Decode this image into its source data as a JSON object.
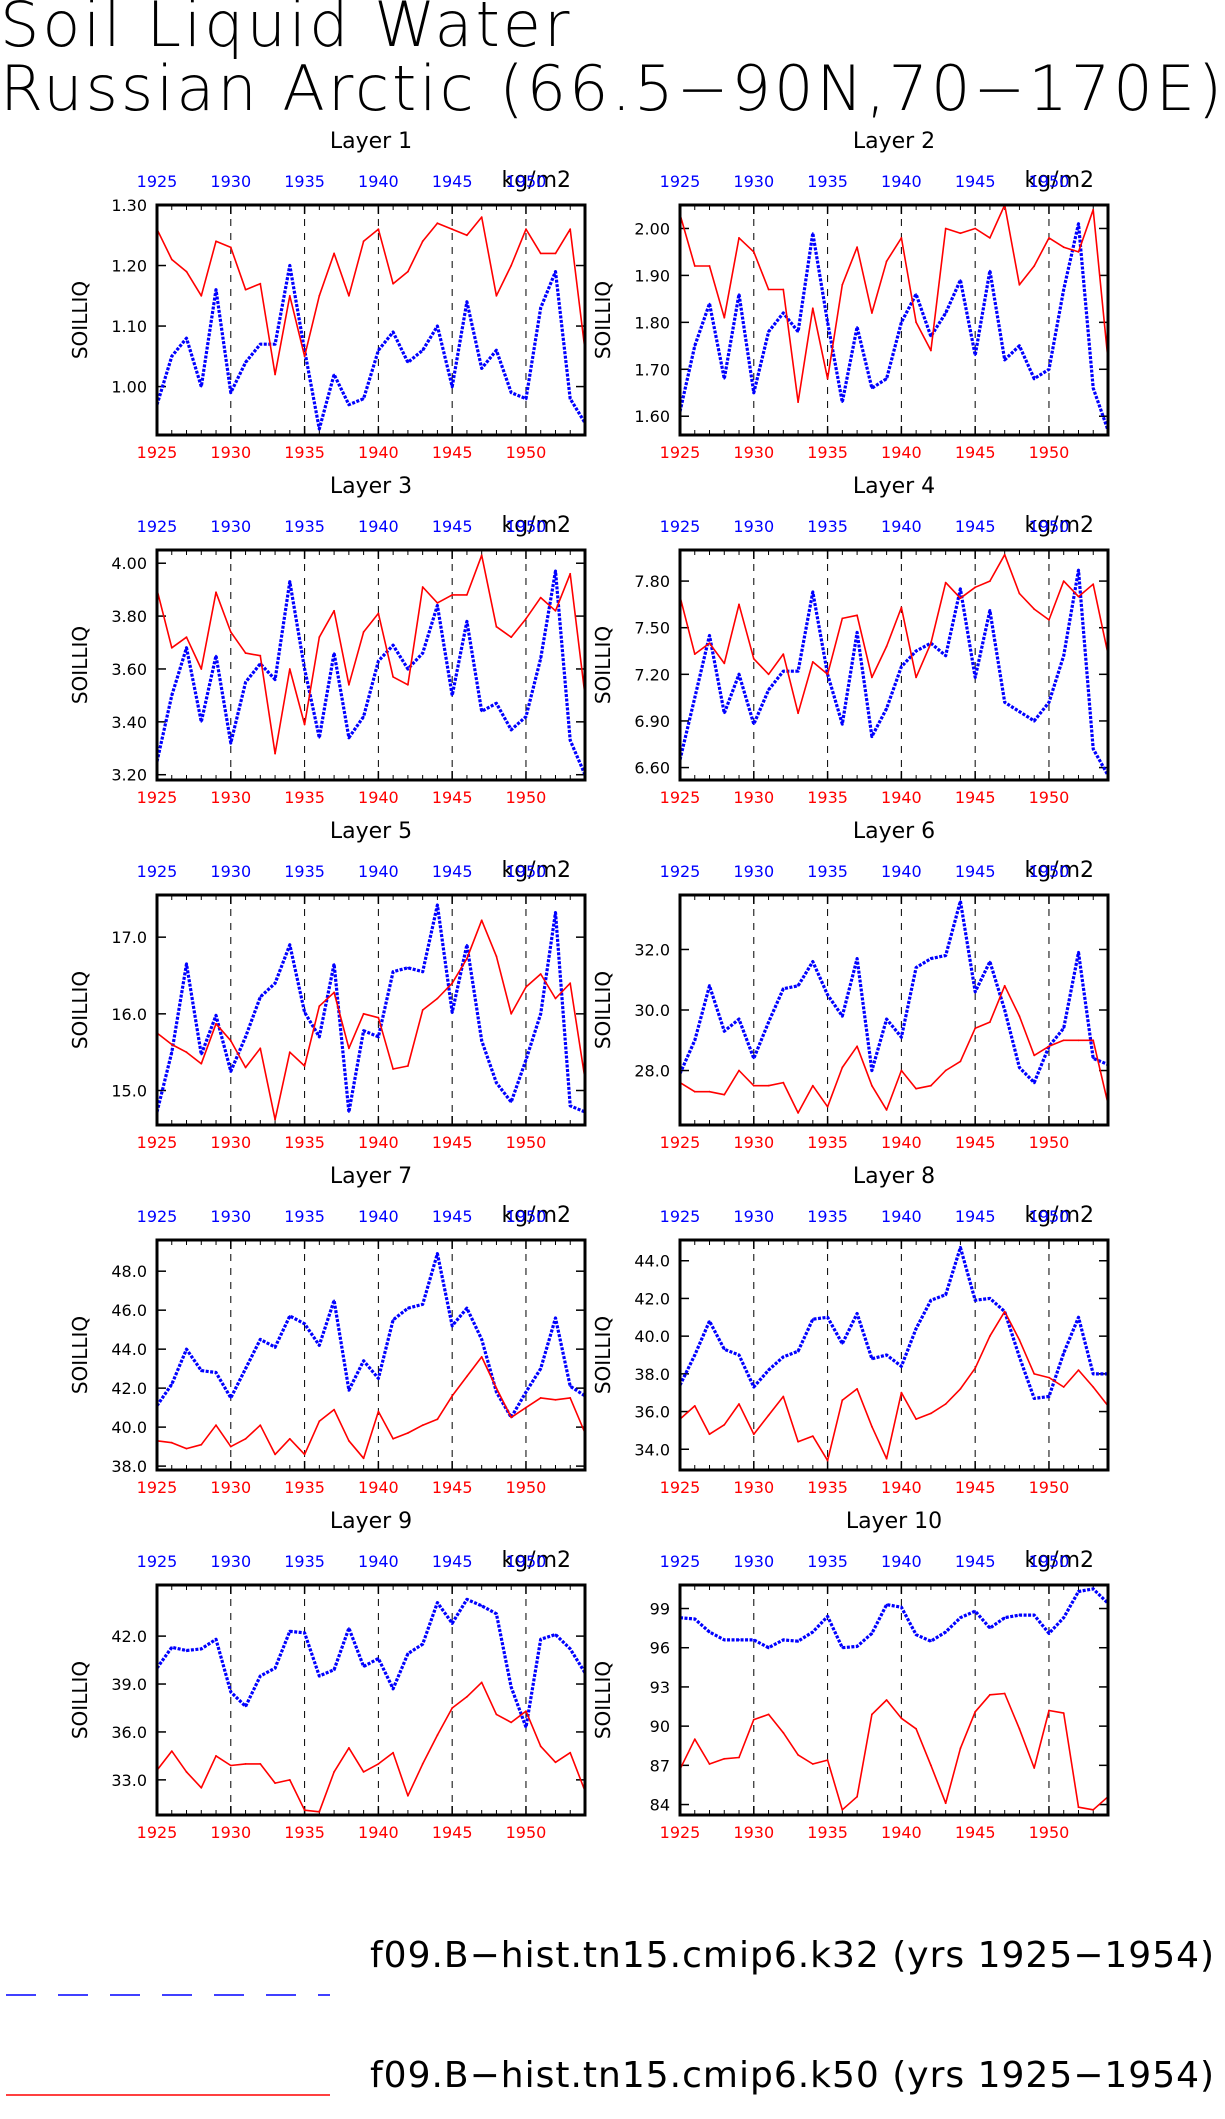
{
  "title": {
    "line1": "Soil Liquid Water",
    "line2": "Russian Arctic (66.5−90N,70−170E)"
  },
  "colors": {
    "k32": "#0000ff",
    "k50": "#ff0000",
    "axis": "#000000"
  },
  "legend": [
    {
      "label": "f09.B−hist.tn15.cmip6.k32 (yrs 1925−1954)",
      "color": "#0000ff",
      "style": "dashed"
    },
    {
      "label": "f09.B−hist.tn15.cmip6.k50 (yrs 1925−1954)",
      "color": "#ff0000",
      "style": "solid"
    }
  ],
  "chart_data": [
    {
      "type": "line",
      "title": "Layer 1",
      "ylabel": "SOILLIQ",
      "units": "kg/m2",
      "xlim": [
        1925,
        1954
      ],
      "ylim": [
        0.92,
        1.3
      ],
      "x_ticks": [
        "1925",
        "1930",
        "1935",
        "1940",
        "1945",
        "1950"
      ],
      "y_ticks": [
        "1.00",
        "1.10",
        "1.20",
        "1.30"
      ],
      "series": [
        {
          "key": "k32",
          "values": [
            0.97,
            1.05,
            1.08,
            1.0,
            1.16,
            0.99,
            1.04,
            1.07,
            1.07,
            1.2,
            1.06,
            0.93,
            1.02,
            0.97,
            0.98,
            1.06,
            1.09,
            1.04,
            1.06,
            1.1,
            1.0,
            1.14,
            1.03,
            1.06,
            0.99,
            0.98,
            1.13,
            1.19,
            0.98,
            0.94
          ]
        },
        {
          "key": "k50",
          "values": [
            1.26,
            1.21,
            1.19,
            1.15,
            1.24,
            1.23,
            1.16,
            1.17,
            1.02,
            1.15,
            1.05,
            1.15,
            1.22,
            1.15,
            1.24,
            1.26,
            1.17,
            1.19,
            1.24,
            1.27,
            1.26,
            1.25,
            1.28,
            1.15,
            1.2,
            1.26,
            1.22,
            1.22,
            1.26,
            1.06
          ]
        }
      ]
    },
    {
      "type": "line",
      "title": "Layer 2",
      "ylabel": "SOILLIQ",
      "units": "kg/m2",
      "xlim": [
        1925,
        1954
      ],
      "ylim": [
        1.56,
        2.05
      ],
      "x_ticks": [
        "1925",
        "1930",
        "1935",
        "1940",
        "1945",
        "1950"
      ],
      "y_ticks": [
        "1.60",
        "1.70",
        "1.80",
        "1.90",
        "2.00"
      ],
      "series": [
        {
          "key": "k32",
          "values": [
            1.61,
            1.75,
            1.84,
            1.68,
            1.86,
            1.65,
            1.78,
            1.82,
            1.78,
            1.99,
            1.8,
            1.63,
            1.79,
            1.66,
            1.68,
            1.8,
            1.86,
            1.77,
            1.82,
            1.89,
            1.73,
            1.91,
            1.72,
            1.75,
            1.68,
            1.7,
            1.87,
            2.01,
            1.66,
            1.57
          ]
        },
        {
          "key": "k50",
          "values": [
            2.03,
            1.92,
            1.92,
            1.81,
            1.98,
            1.95,
            1.87,
            1.87,
            1.63,
            1.83,
            1.68,
            1.88,
            1.96,
            1.82,
            1.93,
            1.98,
            1.8,
            1.74,
            2.0,
            1.99,
            2.0,
            1.98,
            2.05,
            1.88,
            1.92,
            1.98,
            1.96,
            1.95,
            2.04,
            1.72
          ]
        }
      ]
    },
    {
      "type": "line",
      "title": "Layer 3",
      "ylabel": "SOILLIQ",
      "units": "kg/m2",
      "xlim": [
        1925,
        1954
      ],
      "ylim": [
        3.18,
        4.05
      ],
      "x_ticks": [
        "1925",
        "1930",
        "1935",
        "1940",
        "1945",
        "1950"
      ],
      "y_ticks": [
        "3.20",
        "3.40",
        "3.60",
        "3.80",
        "4.00"
      ],
      "series": [
        {
          "key": "k32",
          "values": [
            3.25,
            3.5,
            3.68,
            3.4,
            3.65,
            3.32,
            3.55,
            3.62,
            3.56,
            3.93,
            3.6,
            3.34,
            3.66,
            3.34,
            3.42,
            3.63,
            3.69,
            3.6,
            3.66,
            3.84,
            3.5,
            3.78,
            3.44,
            3.47,
            3.37,
            3.42,
            3.64,
            3.97,
            3.33,
            3.2
          ]
        },
        {
          "key": "k50",
          "values": [
            3.9,
            3.68,
            3.72,
            3.6,
            3.89,
            3.74,
            3.66,
            3.65,
            3.28,
            3.6,
            3.39,
            3.72,
            3.82,
            3.54,
            3.74,
            3.81,
            3.57,
            3.54,
            3.91,
            3.85,
            3.88,
            3.88,
            4.03,
            3.76,
            3.72,
            3.79,
            3.87,
            3.82,
            3.96,
            3.5
          ]
        }
      ]
    },
    {
      "type": "line",
      "title": "Layer 4",
      "ylabel": "SOILLIQ",
      "units": "kg/m2",
      "xlim": [
        1925,
        1954
      ],
      "ylim": [
        6.52,
        8.0
      ],
      "x_ticks": [
        "1925",
        "1930",
        "1935",
        "1940",
        "1945",
        "1950"
      ],
      "y_ticks": [
        "6.60",
        "6.90",
        "7.20",
        "7.50",
        "7.80"
      ],
      "series": [
        {
          "key": "k32",
          "values": [
            6.65,
            7.05,
            7.45,
            6.95,
            7.2,
            6.88,
            7.1,
            7.22,
            7.22,
            7.73,
            7.2,
            6.88,
            7.47,
            6.8,
            6.98,
            7.25,
            7.35,
            7.4,
            7.32,
            7.75,
            7.18,
            7.61,
            7.02,
            6.96,
            6.9,
            7.02,
            7.32,
            7.87,
            6.72,
            6.55
          ]
        },
        {
          "key": "k50",
          "values": [
            7.7,
            7.33,
            7.4,
            7.27,
            7.65,
            7.3,
            7.2,
            7.33,
            6.95,
            7.28,
            7.2,
            7.56,
            7.58,
            7.18,
            7.38,
            7.63,
            7.18,
            7.4,
            7.79,
            7.69,
            7.76,
            7.8,
            7.97,
            7.72,
            7.62,
            7.55,
            7.8,
            7.7,
            7.78,
            7.33
          ]
        }
      ]
    },
    {
      "type": "line",
      "title": "Layer 5",
      "ylabel": "SOILLIQ",
      "units": "kg/m2",
      "xlim": [
        1925,
        1954
      ],
      "ylim": [
        14.55,
        17.55
      ],
      "x_ticks": [
        "1925",
        "1930",
        "1935",
        "1940",
        "1945",
        "1950"
      ],
      "y_ticks": [
        "15.0",
        "16.0",
        "17.0"
      ],
      "series": [
        {
          "key": "k32",
          "values": [
            14.72,
            15.5,
            16.65,
            15.47,
            15.98,
            15.25,
            15.7,
            16.22,
            16.4,
            16.9,
            16.02,
            15.7,
            16.65,
            14.72,
            15.78,
            15.7,
            16.55,
            16.6,
            16.55,
            17.42,
            16.02,
            16.9,
            15.65,
            15.1,
            14.85,
            15.4,
            16.0,
            17.32,
            14.8,
            14.72
          ]
        },
        {
          "key": "k50",
          "values": [
            15.75,
            15.6,
            15.5,
            15.35,
            15.87,
            15.65,
            15.3,
            15.55,
            14.62,
            15.5,
            15.32,
            16.1,
            16.28,
            15.55,
            16.0,
            15.95,
            15.28,
            15.32,
            16.05,
            16.2,
            16.4,
            16.72,
            17.22,
            16.75,
            16.0,
            16.35,
            16.52,
            16.2,
            16.4,
            15.15
          ]
        }
      ]
    },
    {
      "type": "line",
      "title": "Layer 6",
      "ylabel": "SOILLIQ",
      "units": "kg/m2",
      "xlim": [
        1925,
        1954
      ],
      "ylim": [
        26.2,
        33.8
      ],
      "x_ticks": [
        "1925",
        "1930",
        "1935",
        "1940",
        "1945",
        "1950"
      ],
      "y_ticks": [
        "28.0",
        "30.0",
        "32.0"
      ],
      "series": [
        {
          "key": "k32",
          "values": [
            27.9,
            29.0,
            30.8,
            29.3,
            29.7,
            28.4,
            29.6,
            30.7,
            30.8,
            31.6,
            30.5,
            29.8,
            31.7,
            28.0,
            29.7,
            29.1,
            31.4,
            31.7,
            31.8,
            33.6,
            30.6,
            31.6,
            30.0,
            28.1,
            27.6,
            28.8,
            29.4,
            31.9,
            28.4,
            28.2
          ]
        },
        {
          "key": "k50",
          "values": [
            27.6,
            27.3,
            27.3,
            27.2,
            28.0,
            27.5,
            27.5,
            27.6,
            26.6,
            27.5,
            26.8,
            28.1,
            28.8,
            27.5,
            26.7,
            28.0,
            27.4,
            27.5,
            28.0,
            28.3,
            29.4,
            29.6,
            30.8,
            29.8,
            28.5,
            28.8,
            29.0,
            29.0,
            29.0,
            26.9
          ]
        }
      ]
    },
    {
      "type": "line",
      "title": "Layer 7",
      "ylabel": "SOILLIQ",
      "units": "kg/m2",
      "xlim": [
        1925,
        1954
      ],
      "ylim": [
        37.8,
        49.6
      ],
      "x_ticks": [
        "1925",
        "1930",
        "1935",
        "1940",
        "1945",
        "1950"
      ],
      "y_ticks": [
        "38.0",
        "40.0",
        "42.0",
        "44.0",
        "46.0",
        "48.0"
      ],
      "series": [
        {
          "key": "k32",
          "values": [
            41.1,
            42.2,
            44.0,
            42.9,
            42.8,
            41.5,
            43.0,
            44.5,
            44.1,
            45.7,
            45.3,
            44.2,
            46.5,
            41.9,
            43.4,
            42.5,
            45.5,
            46.1,
            46.3,
            48.9,
            45.2,
            46.1,
            44.5,
            41.8,
            40.5,
            41.8,
            43.0,
            45.6,
            42.1,
            41.6
          ]
        },
        {
          "key": "k50",
          "values": [
            39.3,
            39.2,
            38.9,
            39.1,
            40.1,
            39.0,
            39.4,
            40.1,
            38.6,
            39.4,
            38.6,
            40.3,
            40.9,
            39.3,
            38.4,
            40.8,
            39.4,
            39.7,
            40.1,
            40.4,
            41.6,
            42.6,
            43.6,
            42.0,
            40.5,
            41.0,
            41.5,
            41.4,
            41.5,
            39.7
          ]
        }
      ]
    },
    {
      "type": "line",
      "title": "Layer 8",
      "ylabel": "SOILLIQ",
      "units": "kg/m2",
      "xlim": [
        1925,
        1954
      ],
      "ylim": [
        32.9,
        45.1
      ],
      "x_ticks": [
        "1925",
        "1930",
        "1935",
        "1940",
        "1945",
        "1950"
      ],
      "y_ticks": [
        "34.0",
        "36.0",
        "38.0",
        "40.0",
        "42.0",
        "44.0"
      ],
      "series": [
        {
          "key": "k32",
          "values": [
            37.4,
            39.0,
            40.8,
            39.3,
            39.0,
            37.3,
            38.2,
            38.9,
            39.2,
            40.9,
            41.0,
            39.6,
            41.2,
            38.8,
            39.0,
            38.4,
            40.4,
            41.9,
            42.2,
            44.7,
            41.9,
            42.0,
            41.3,
            38.9,
            36.7,
            36.8,
            39.1,
            41.0,
            38.0,
            38.0
          ]
        },
        {
          "key": "k50",
          "values": [
            35.6,
            36.3,
            34.8,
            35.3,
            36.4,
            34.8,
            35.8,
            36.8,
            34.4,
            34.7,
            33.4,
            36.6,
            37.2,
            35.2,
            33.5,
            37.0,
            35.6,
            35.9,
            36.4,
            37.2,
            38.3,
            40.0,
            41.3,
            39.8,
            38.0,
            37.8,
            37.3,
            38.2,
            37.3,
            36.3
          ]
        }
      ]
    },
    {
      "type": "line",
      "title": "Layer 9",
      "ylabel": "SOILLIQ",
      "units": "kg/m2",
      "xlim": [
        1925,
        1954
      ],
      "ylim": [
        30.8,
        45.2
      ],
      "x_ticks": [
        "1925",
        "1930",
        "1935",
        "1940",
        "1945",
        "1950"
      ],
      "y_ticks": [
        "33.0",
        "36.0",
        "39.0",
        "42.0"
      ],
      "series": [
        {
          "key": "k32",
          "values": [
            40.0,
            41.3,
            41.1,
            41.2,
            41.8,
            38.5,
            37.6,
            39.5,
            40.0,
            42.3,
            42.2,
            39.5,
            39.9,
            42.5,
            40.1,
            40.6,
            38.7,
            40.9,
            41.5,
            44.1,
            42.8,
            44.3,
            43.9,
            43.4,
            38.8,
            36.3,
            41.8,
            42.1,
            41.2,
            39.7
          ]
        },
        {
          "key": "k50",
          "values": [
            33.6,
            34.8,
            33.5,
            32.5,
            34.5,
            33.9,
            34.0,
            34.0,
            32.8,
            33.0,
            31.1,
            31.0,
            33.5,
            35.0,
            33.5,
            34.0,
            34.7,
            32.0,
            34.0,
            35.8,
            37.5,
            38.2,
            39.1,
            37.1,
            36.6,
            37.3,
            35.1,
            34.1,
            34.7,
            32.3
          ]
        }
      ]
    },
    {
      "type": "line",
      "title": "Layer 10",
      "ylabel": "SOILLIQ",
      "units": "kg/m2",
      "xlim": [
        1925,
        1954
      ],
      "ylim": [
        83.2,
        100.8
      ],
      "x_ticks": [
        "1925",
        "1930",
        "1935",
        "1940",
        "1945",
        "1950"
      ],
      "y_ticks": [
        "84",
        "87",
        "90",
        "93",
        "96",
        "99"
      ],
      "series": [
        {
          "key": "k32",
          "values": [
            98.3,
            98.2,
            97.2,
            96.6,
            96.6,
            96.6,
            96.0,
            96.6,
            96.5,
            97.2,
            98.4,
            96.0,
            96.1,
            97.1,
            99.3,
            99.1,
            97.0,
            96.5,
            97.2,
            98.3,
            98.8,
            97.5,
            98.3,
            98.5,
            98.5,
            97.1,
            98.3,
            100.3,
            100.5,
            99.4
          ]
        },
        {
          "key": "k50",
          "values": [
            86.7,
            89.0,
            87.1,
            87.5,
            87.6,
            90.5,
            90.9,
            89.5,
            87.8,
            87.1,
            87.4,
            83.6,
            84.6,
            90.9,
            92.0,
            90.6,
            89.8,
            87.0,
            84.1,
            88.3,
            91.1,
            92.4,
            92.5,
            89.8,
            86.8,
            91.2,
            91.0,
            83.8,
            83.6,
            84.6
          ]
        }
      ]
    }
  ]
}
